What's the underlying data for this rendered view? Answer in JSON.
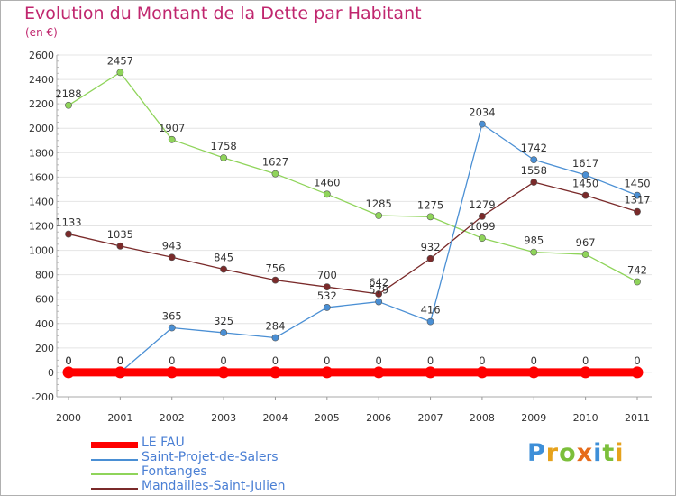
{
  "header": {
    "title": "Evolution du Montant de la Dette par Habitant",
    "subtitle": "(en €)"
  },
  "brand": {
    "text": "Proxiti",
    "letters": [
      "P",
      "r",
      "o",
      "x",
      "i",
      "t",
      "i"
    ],
    "colors": [
      "#3e8fd8",
      "#e6a21c",
      "#7cbf3b",
      "#e66b1a",
      "#3e8fd8",
      "#7cbf3b",
      "#e6a21c"
    ]
  },
  "chart_data": {
    "type": "line",
    "title": "Evolution du Montant de la Dette par Habitant",
    "subtitle": "(en €)",
    "x": [
      "2000",
      "2001",
      "2002",
      "2003",
      "2004",
      "2005",
      "2006",
      "2007",
      "2008",
      "2009",
      "2010",
      "2011"
    ],
    "ylim": [
      -200,
      2600
    ],
    "yticks": [
      -200,
      0,
      200,
      400,
      600,
      800,
      1000,
      1200,
      1400,
      1600,
      1800,
      2000,
      2200,
      2400,
      2600
    ],
    "ytick_labels": [
      "-200",
      "0",
      "200",
      "400",
      "600",
      "800",
      "1000",
      "1200",
      "1400",
      "1600",
      "1800",
      "2000",
      "2200",
      "2400",
      "2600"
    ],
    "grid": true,
    "legend_position": "bottom-left",
    "series": [
      {
        "name": "LE FAU",
        "color": "#ff0000",
        "values": [
          0,
          0,
          0,
          0,
          0,
          0,
          0,
          0,
          0,
          0,
          0,
          0
        ],
        "labels": [
          "0",
          "0",
          "0",
          "0",
          "0",
          "0",
          "0",
          "0",
          "0",
          "0",
          "0",
          "0"
        ]
      },
      {
        "name": "Saint-Projet-de-Salers",
        "color": "#4a8fd4",
        "values": [
          0,
          0,
          365,
          325,
          284,
          532,
          579,
          416,
          2034,
          1742,
          1617,
          1450
        ],
        "labels": [
          "0",
          "0",
          "365",
          "325",
          "284",
          "532",
          "579",
          "416",
          "2034",
          "1742",
          "1617",
          "1450"
        ]
      },
      {
        "name": "Fontanges",
        "color": "#8fd45a",
        "values": [
          2188,
          2457,
          1907,
          1758,
          1627,
          1460,
          1285,
          1275,
          1099,
          985,
          967,
          742
        ],
        "labels": [
          "2188",
          "2457",
          "1907",
          "1758",
          "1627",
          "1460",
          "1285",
          "1275",
          "1099",
          "985",
          "967",
          "742"
        ]
      },
      {
        "name": "Mandailles-Saint-Julien",
        "color": "#7a2a2a",
        "values": [
          1133,
          1035,
          943,
          845,
          756,
          700,
          642,
          932,
          1279,
          1558,
          1450,
          1317
        ],
        "labels": [
          "1133",
          "1035",
          "943",
          "845",
          "756",
          "700",
          "642",
          "932",
          "1279",
          "1558",
          "1450",
          "1317"
        ]
      }
    ]
  }
}
